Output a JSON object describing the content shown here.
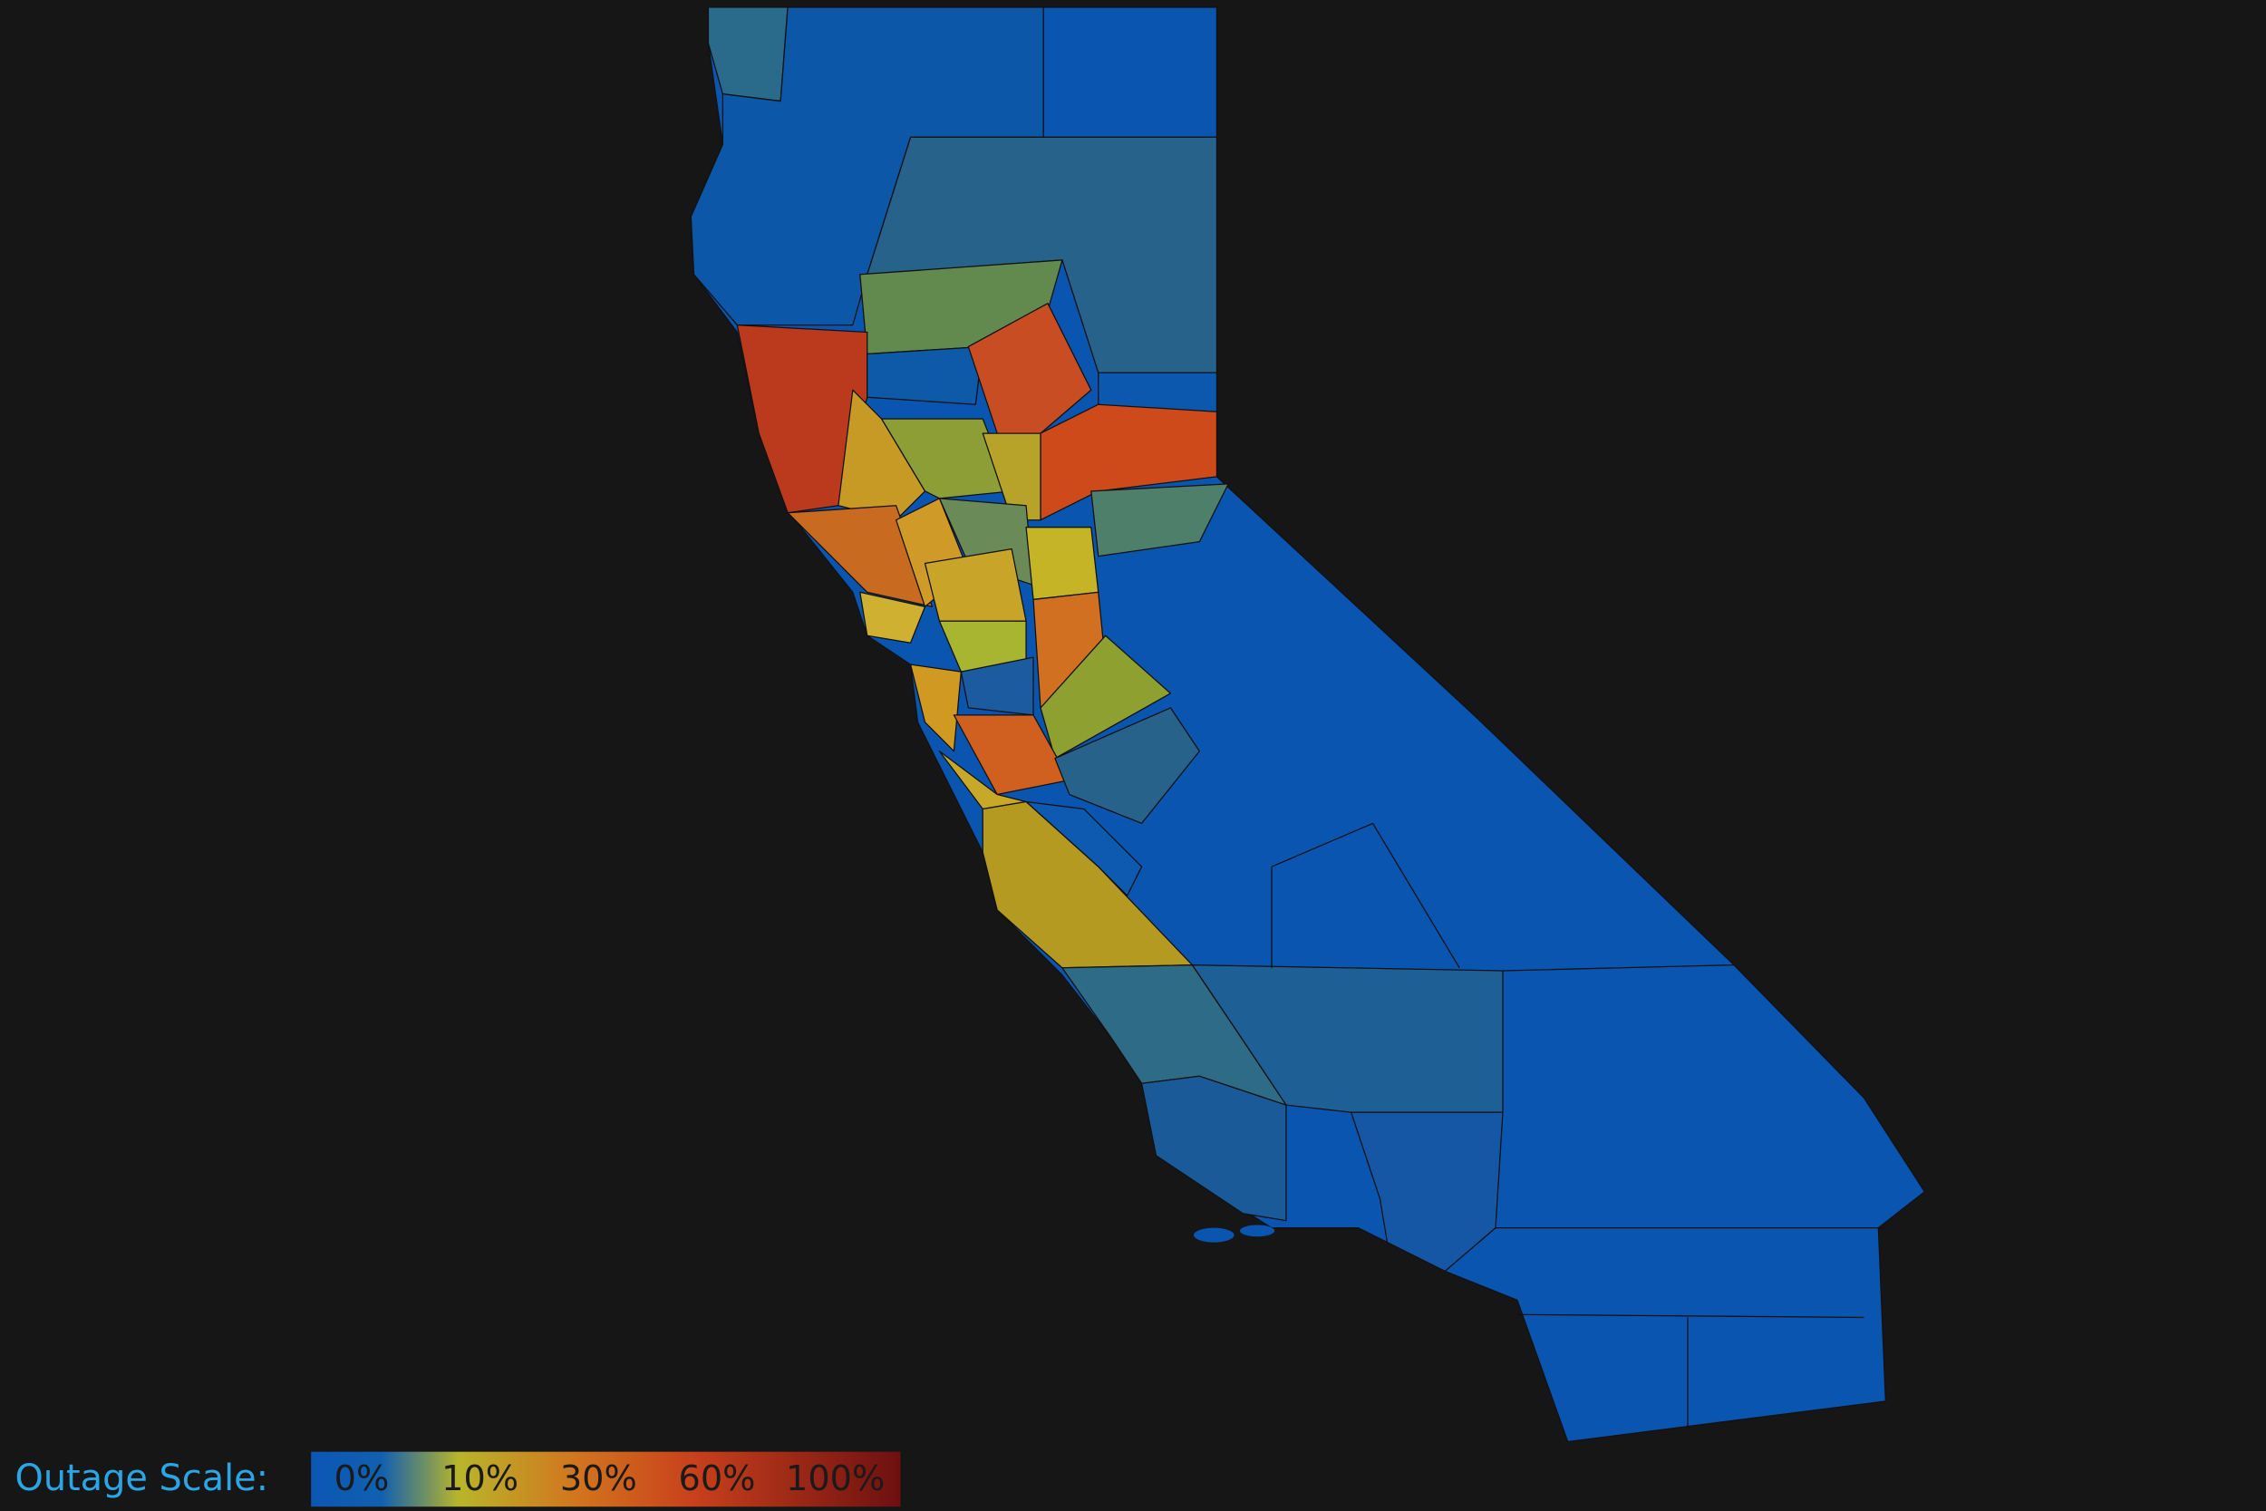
{
  "legend": {
    "title": "Outage Scale:",
    "labels": [
      "0%",
      "10%",
      "30%",
      "60%",
      "100%"
    ]
  }
}
